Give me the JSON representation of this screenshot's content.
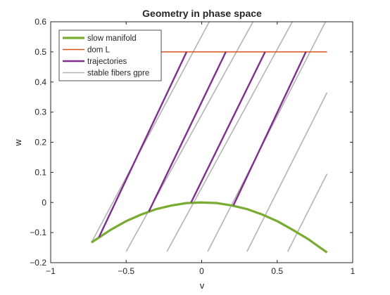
{
  "chart_data": {
    "type": "line",
    "title": "Geometry in phase space",
    "xlabel": "v",
    "ylabel": "w",
    "xlim": [
      -1,
      1
    ],
    "ylim": [
      -0.2,
      0.6
    ],
    "xticks": [
      -1,
      -0.5,
      0,
      0.5,
      1
    ],
    "xtick_labels": [
      "−1",
      "−0.5",
      "0",
      "0.5",
      "1"
    ],
    "yticks": [
      -0.2,
      -0.1,
      0,
      0.1,
      0.2,
      0.3,
      0.4,
      0.5,
      0.6
    ],
    "ytick_labels": [
      "−0.2",
      "−0.1",
      "0",
      "0.1",
      "0.2",
      "0.3",
      "0.4",
      "0.5",
      "0.6"
    ],
    "grid": false,
    "legend_position": "top-left",
    "series": [
      {
        "name": "slow manifold",
        "color": "#77ac30",
        "kind": "curve",
        "x": [
          -0.73,
          -0.6,
          -0.5,
          -0.4,
          -0.3,
          -0.2,
          -0.1,
          0.0,
          0.1,
          0.2,
          0.3,
          0.4,
          0.5,
          0.6,
          0.7,
          0.83
        ],
        "y": [
          -0.133,
          -0.09,
          -0.062,
          -0.04,
          -0.022,
          -0.01,
          -0.002,
          0.0,
          -0.002,
          -0.01,
          -0.022,
          -0.04,
          -0.062,
          -0.09,
          -0.12,
          -0.166
        ]
      },
      {
        "name": "dom L",
        "color": "#d95319",
        "kind": "line",
        "x": [
          -0.27,
          0.83
        ],
        "y": [
          0.5,
          0.5
        ]
      },
      {
        "name": "trajectories",
        "color": "#7e2f8e",
        "kind": "segments",
        "segments": [
          {
            "x": [
              -0.1,
              -0.68
            ],
            "y": [
              0.5,
              -0.115
            ]
          },
          {
            "x": [
              0.16,
              -0.35
            ],
            "y": [
              0.5,
              -0.03
            ]
          },
          {
            "x": [
              0.42,
              -0.07
            ],
            "y": [
              0.5,
              0.0
            ]
          },
          {
            "x": [
              0.69,
              0.21
            ],
            "y": [
              0.5,
              -0.01
            ]
          }
        ]
      },
      {
        "name": "stable fibers gpre",
        "color": "#b3b3b3",
        "kind": "segments",
        "segments": [
          {
            "x": [
              -0.73,
              0.05
            ],
            "y": [
              -0.133,
              0.6
            ]
          },
          {
            "x": [
              -0.5,
              0.34
            ],
            "y": [
              -0.163,
              0.6
            ]
          },
          {
            "x": [
              -0.23,
              0.6
            ],
            "y": [
              -0.163,
              0.6
            ]
          },
          {
            "x": [
              0.04,
              0.82
            ],
            "y": [
              -0.163,
              0.6
            ]
          },
          {
            "x": [
              0.3,
              0.83
            ],
            "y": [
              -0.163,
              0.365
            ]
          },
          {
            "x": [
              0.57,
              0.83
            ],
            "y": [
              -0.163,
              0.095
            ]
          }
        ]
      }
    ]
  }
}
